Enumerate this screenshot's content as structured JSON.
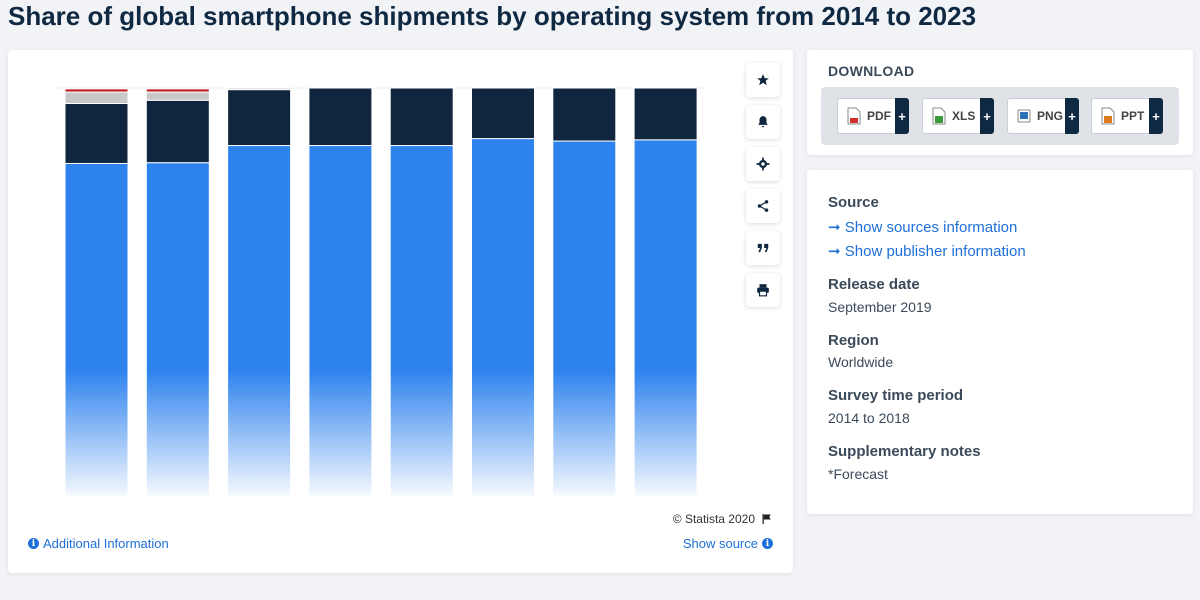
{
  "page": {
    "title": "Share of global smartphone shipments by operating system from 2014 to 2023"
  },
  "toolbar": {
    "buttons": [
      "star-icon",
      "bell-icon",
      "gear-icon",
      "share-icon",
      "quote-icon",
      "print-icon"
    ]
  },
  "chart_footer": {
    "copyright": "© Statista 2020",
    "additional_info": "Additional Information",
    "show_source": "Show source"
  },
  "download": {
    "title": "DOWNLOAD",
    "buttons": [
      {
        "label": "PDF",
        "color": "#d32f2f"
      },
      {
        "label": "XLS",
        "color": "#3a9b3a"
      },
      {
        "label": "PNG",
        "color": "#2d6fb8"
      },
      {
        "label": "PPT",
        "color": "#e07a1f"
      }
    ],
    "plus": "+"
  },
  "info": {
    "source_heading": "Source",
    "show_sources": "Show sources information",
    "show_publisher": "Show publisher information",
    "release_heading": "Release date",
    "release_value": "September 2019",
    "region_heading": "Region",
    "region_value": "Worldwide",
    "survey_heading": "Survey time period",
    "survey_value": "2014 to 2018",
    "notes_heading": "Supplementary notes",
    "notes_value": "*Forecast"
  },
  "colors": {
    "android": "#2d82ee",
    "ios": "#10263f",
    "others_gray": "#c8c8c8",
    "others_red": "#c0282d",
    "link": "#1e6fd9"
  },
  "chart_data": {
    "type": "bar",
    "stacked": true,
    "ylim": [
      0,
      100
    ],
    "grid": false,
    "legend": "none",
    "categories": [
      "",
      "",
      "",
      "",
      "",
      "",
      "",
      ""
    ],
    "series": [
      {
        "values": [
          81.5,
          81.7,
          85.9,
          85.9,
          85.9,
          87.6,
          87.0,
          87.3
        ],
        "color": "#2d82ee"
      },
      {
        "values": [
          14.7,
          15.3,
          13.7,
          14.1,
          14.1,
          12.4,
          13.0,
          12.7
        ],
        "color": "#10263f"
      },
      {
        "values": [
          2.8,
          2.0,
          0.4,
          0,
          0,
          0,
          0,
          0
        ],
        "color": "#c8c8c8"
      },
      {
        "values": [
          0.8,
          0.8,
          0,
          0,
          0,
          0,
          0,
          0
        ],
        "color": "#c0282d"
      }
    ]
  }
}
